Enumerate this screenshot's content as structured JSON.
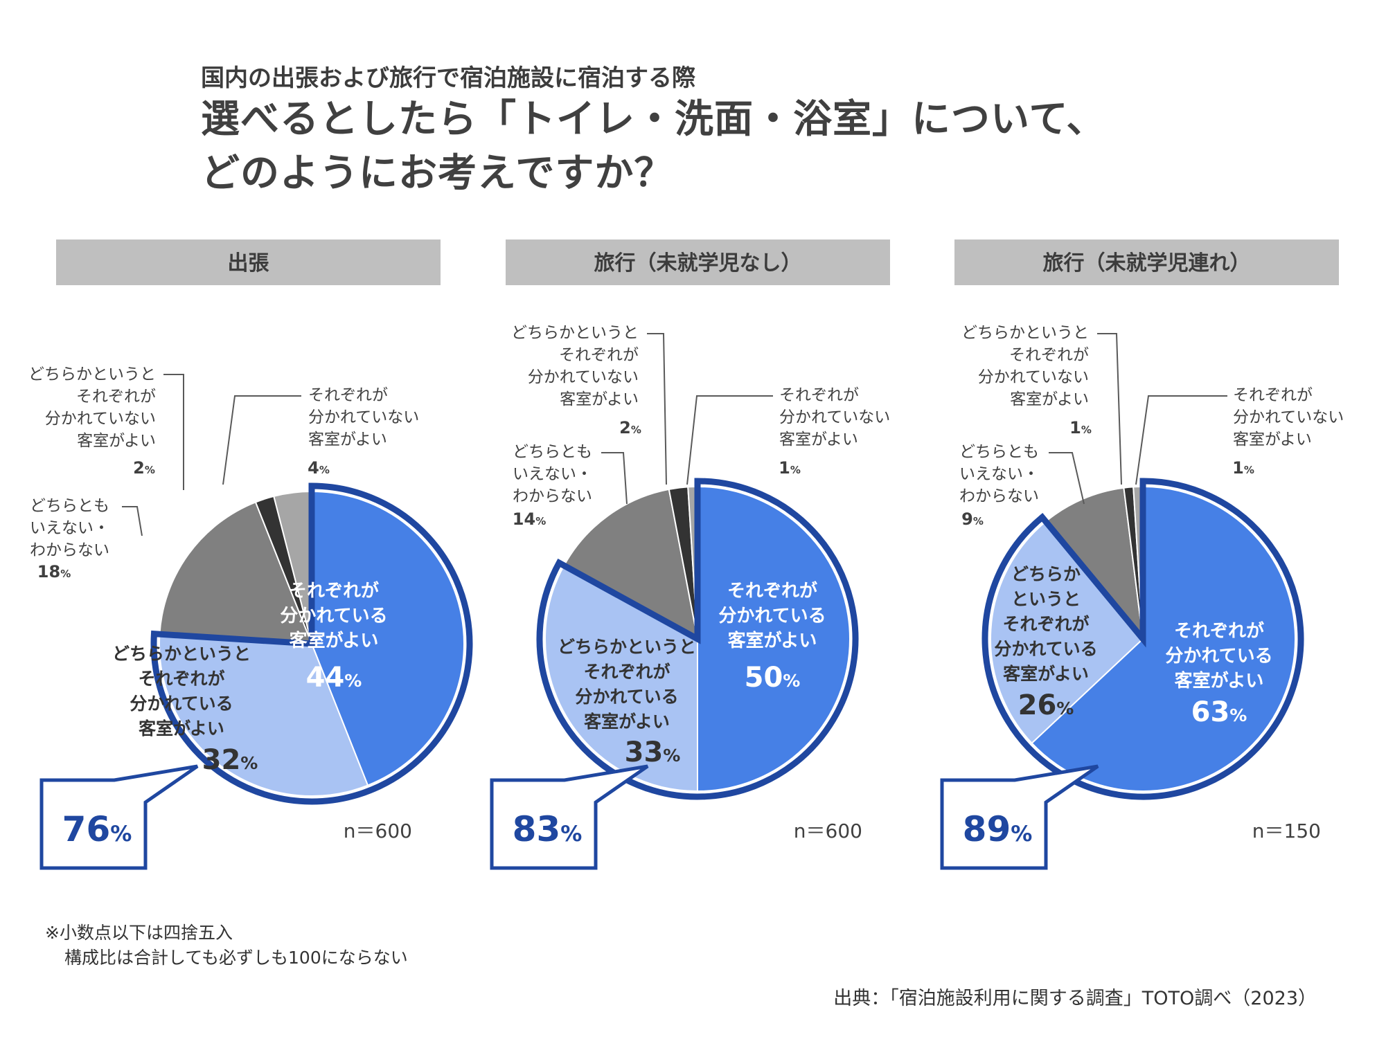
{
  "header": {
    "subtitle": "国内の出張および旅行で宿泊施設に宿泊する際",
    "title_line1": "選べるとしたら「トイレ・洗面・浴室」について、",
    "title_line2": "どのようにお考えですか？"
  },
  "colors": {
    "separated": "#4680E6",
    "somewhat_separated": "#A9C3F3",
    "neither": "#808080",
    "somewhat_not_separated": "#333333",
    "not_separated": "#A6A6A6",
    "highlight_outline": "#1F47A0",
    "panel_header_bg": "#BFBFBF"
  },
  "chart_data": [
    {
      "type": "pie",
      "panel_title": "出張",
      "n_label": "n＝600",
      "combined_label": "76%",
      "slices": [
        {
          "label": "それぞれが\n分かれている\n客室がよい",
          "value": 44,
          "value_label": "44%"
        },
        {
          "label": "どちらかというと\nそれぞれが\n分かれている\n客室がよい",
          "value": 32,
          "value_label": "32%"
        },
        {
          "label": "どちらとも\nいえない・\nわからない",
          "value": 18,
          "value_label": "18%"
        },
        {
          "label": "どちらかというと\nそれぞれが\n分かれていない\n客室がよい",
          "value": 2,
          "value_label": "2%"
        },
        {
          "label": "それぞれが\n分かれていない\n客室がよい",
          "value": 4,
          "value_label": "4%"
        }
      ]
    },
    {
      "type": "pie",
      "panel_title": "旅行（未就学児なし）",
      "n_label": "n＝600",
      "combined_label": "83%",
      "slices": [
        {
          "label": "それぞれが\n分かれている\n客室がよい",
          "value": 50,
          "value_label": "50%"
        },
        {
          "label": "どちらかというと\nそれぞれが\n分かれている\n客室がよい",
          "value": 33,
          "value_label": "33%"
        },
        {
          "label": "どちらとも\nいえない・\nわからない",
          "value": 14,
          "value_label": "14%"
        },
        {
          "label": "どちらかというと\nそれぞれが\n分かれていない\n客室がよい",
          "value": 2,
          "value_label": "2%"
        },
        {
          "label": "それぞれが\n分かれていない\n客室がよい",
          "value": 1,
          "value_label": "1%"
        }
      ]
    },
    {
      "type": "pie",
      "panel_title": "旅行（未就学児連れ）",
      "n_label": "n＝150",
      "combined_label": "89%",
      "slices": [
        {
          "label": "それぞれが\n分かれている\n客室がよい",
          "value": 63,
          "value_label": "63%"
        },
        {
          "label": "どちらか\nというと\nそれぞれが\n分かれている\n客室がよい",
          "value": 26,
          "value_label": "26%"
        },
        {
          "label": "どちらとも\nいえない・\nわからない",
          "value": 9,
          "value_label": "9%"
        },
        {
          "label": "どちらかというと\nそれぞれが\n分かれていない\n客室がよい",
          "value": 1,
          "value_label": "1%"
        },
        {
          "label": "それぞれが\n分かれていない\n客室がよい",
          "value": 1,
          "value_label": "1%"
        }
      ]
    }
  ],
  "footnote": {
    "line1": "※小数点以下は四捨五入",
    "line2": "構成比は合計しても必ずしも100にならない"
  },
  "source": "出典：「宿泊施設利用に関する調査」TOTO調べ（2023）"
}
